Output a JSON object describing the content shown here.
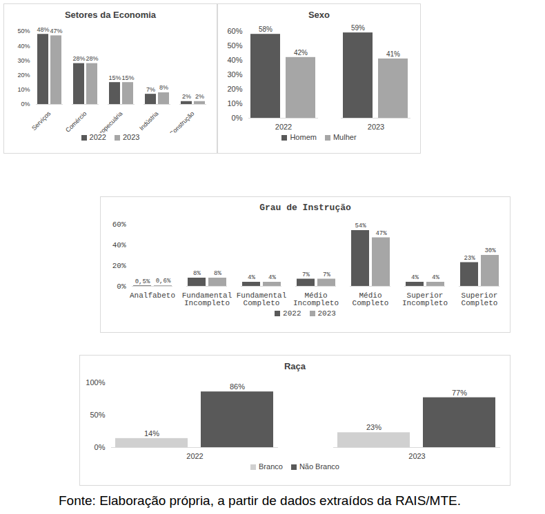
{
  "chart_data": [
    {
      "type": "bar",
      "title": "Setores da Economia",
      "categories": [
        "Serviços",
        "Comércio",
        "Agropecuária",
        "Indústria",
        "Construção"
      ],
      "series": [
        {
          "name": "2022",
          "color": "#595959",
          "values": [
            48,
            28,
            15,
            7,
            2
          ],
          "value_labels": [
            "48%",
            "28%",
            "15%",
            "7%",
            "2%"
          ]
        },
        {
          "name": "2023",
          "color": "#a6a6a6",
          "values": [
            47,
            28,
            15,
            8,
            2
          ],
          "value_labels": [
            "47%",
            "28%",
            "15%",
            "8%",
            "2%"
          ]
        }
      ],
      "ylim": [
        0,
        50
      ],
      "yticks": [
        {
          "value": 0,
          "label": "0%"
        },
        {
          "value": 10,
          "label": "10%"
        },
        {
          "value": 20,
          "label": "20%"
        },
        {
          "value": 30,
          "label": "30%"
        },
        {
          "value": 40,
          "label": "40%"
        },
        {
          "value": 50,
          "label": "50%"
        }
      ],
      "data_labels": true,
      "grid": false,
      "legend": "bottom"
    },
    {
      "type": "bar",
      "title": "Sexo",
      "categories": [
        "2022",
        "2023"
      ],
      "series": [
        {
          "name": "Homem",
          "color": "#595959",
          "values": [
            58,
            59
          ],
          "value_labels": [
            "58%",
            "59%"
          ]
        },
        {
          "name": "Mulher",
          "color": "#a6a6a6",
          "values": [
            42,
            41
          ],
          "value_labels": [
            "42%",
            "41%"
          ]
        }
      ],
      "ylim": [
        0,
        60
      ],
      "yticks": [
        {
          "value": 0,
          "label": "0%"
        },
        {
          "value": 10,
          "label": "10%"
        },
        {
          "value": 20,
          "label": "20%"
        },
        {
          "value": 30,
          "label": "30%"
        },
        {
          "value": 40,
          "label": "40%"
        },
        {
          "value": 50,
          "label": "50%"
        },
        {
          "value": 60,
          "label": "60%"
        }
      ],
      "data_labels": true,
      "grid": false,
      "legend": "bottom"
    },
    {
      "type": "bar",
      "title": "Grau de Instrução",
      "categories": [
        "Analfabeto",
        "Fundamental Incompleto",
        "Fundamental Completo",
        "Médio Incompleto",
        "Médio Completo",
        "Superior Incompleto",
        "Superior Completo"
      ],
      "series": [
        {
          "name": "2022",
          "color": "#595959",
          "values": [
            0.5,
            8,
            4,
            7,
            54,
            4,
            23
          ],
          "value_labels": [
            "0,5%",
            "8%",
            "4%",
            "7%",
            "54%",
            "4%",
            "23%"
          ]
        },
        {
          "name": "2023",
          "color": "#a6a6a6",
          "values": [
            0.6,
            8,
            4,
            7,
            47,
            4,
            30
          ],
          "value_labels": [
            "0,6%",
            "8%",
            "4%",
            "7%",
            "47%",
            "4%",
            "30%"
          ]
        }
      ],
      "ylim": [
        0,
        60
      ],
      "yticks": [
        {
          "value": 0,
          "label": "0%"
        },
        {
          "value": 20,
          "label": "20%"
        },
        {
          "value": 40,
          "label": "40%"
        },
        {
          "value": 60,
          "label": "60%"
        }
      ],
      "data_labels": true,
      "grid": false,
      "legend": "bottom"
    },
    {
      "type": "bar",
      "title": "Raça",
      "categories": [
        "2022",
        "2023"
      ],
      "series": [
        {
          "name": "Branco",
          "color": "#d0d0d0",
          "values": [
            14,
            23
          ],
          "value_labels": [
            "14%",
            "23%"
          ]
        },
        {
          "name": "Não Branco",
          "color": "#595959",
          "values": [
            86,
            77
          ],
          "value_labels": [
            "86%",
            "77%"
          ]
        }
      ],
      "ylim": [
        0,
        100
      ],
      "yticks": [
        {
          "value": 0,
          "label": "0%"
        },
        {
          "value": 50,
          "label": "50%"
        },
        {
          "value": 100,
          "label": "100%"
        }
      ],
      "data_labels": true,
      "grid": false,
      "legend": "bottom"
    }
  ],
  "caption": "Fonte: Elaboração própria, a partir de dados extraídos da RAIS/MTE."
}
